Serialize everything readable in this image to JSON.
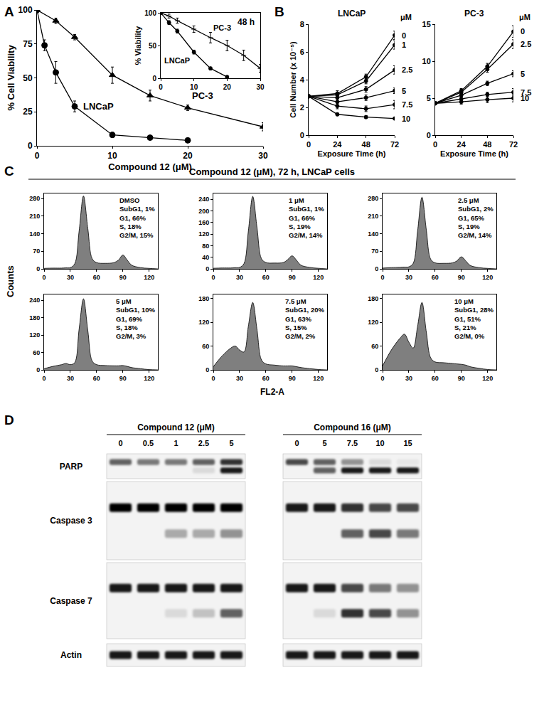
{
  "panel_labels": [
    "A",
    "B",
    "C",
    "D"
  ],
  "chart_data": [
    {
      "type": "line",
      "x_label": "Compound 12 (μM)",
      "y_label": "% Cell Viability",
      "xlim": [
        0,
        30
      ],
      "ylim": [
        0,
        100
      ],
      "xticks": [
        0,
        10,
        20,
        30
      ],
      "yticks": [
        0,
        25,
        50,
        75,
        100
      ],
      "series": [
        {
          "name": "LNCaP",
          "color": "#000000",
          "marker": "circle",
          "x": [
            0,
            1,
            2.5,
            5,
            10,
            15,
            20
          ],
          "values": [
            100,
            74,
            54,
            29,
            8,
            6,
            4
          ],
          "error": [
            2,
            4,
            8,
            4,
            2,
            1,
            1
          ]
        },
        {
          "name": "PC-3",
          "color": "#000000",
          "marker": "triangle-up",
          "x": [
            0,
            2.5,
            5,
            10,
            15,
            20,
            30
          ],
          "values": [
            100,
            92,
            80,
            52,
            37,
            28,
            14
          ],
          "error": [
            2,
            2,
            2,
            6,
            4,
            2,
            3
          ]
        }
      ]
    },
    {
      "type": "line",
      "y_label": "% Viability",
      "annotations": [
        "48 h"
      ],
      "xlim": [
        0,
        30
      ],
      "ylim": [
        0,
        100
      ],
      "xticks": [
        0,
        10,
        20,
        30
      ],
      "yticks": [
        0,
        50,
        100
      ],
      "series": [
        {
          "name": "LNCaP",
          "color": "#000000",
          "marker": "circle",
          "x": [
            0,
            2.5,
            5,
            10,
            15,
            20
          ],
          "values": [
            100,
            85,
            72,
            40,
            15,
            2
          ],
          "error": [
            2,
            3,
            3,
            3,
            2,
            1
          ]
        },
        {
          "name": "PC-3",
          "color": "#000000",
          "marker": "line-ew",
          "x": [
            0,
            2.5,
            5,
            10,
            15,
            20,
            25,
            30
          ],
          "values": [
            100,
            95,
            88,
            75,
            62,
            50,
            35,
            15
          ],
          "error": [
            2,
            3,
            4,
            5,
            8,
            8,
            8,
            6
          ]
        }
      ]
    },
    {
      "type": "line",
      "title": "LNCaP",
      "x_label": "Exposure Time (h)",
      "y_label": "Cell Number (x 10⁻⁵)",
      "annotations": [
        "μM"
      ],
      "xlim": [
        0,
        72
      ],
      "ylim": [
        0,
        8
      ],
      "xticks": [
        0,
        24,
        48,
        72
      ],
      "yticks": [
        0,
        2,
        4,
        6,
        8
      ],
      "x": [
        0,
        24,
        48,
        72
      ],
      "series": [
        {
          "name": "0",
          "color": "#000000",
          "marker": "circle",
          "values": [
            2.8,
            3.0,
            4.2,
            7.2
          ],
          "error": [
            0.1,
            0.2,
            0.2,
            0.3
          ]
        },
        {
          "name": "1",
          "color": "#000000",
          "marker": "circle",
          "values": [
            2.8,
            2.9,
            3.9,
            6.5
          ],
          "error": [
            0.1,
            0.2,
            0.2,
            0.3
          ]
        },
        {
          "name": "2.5",
          "color": "#000000",
          "marker": "circle",
          "values": [
            2.8,
            2.7,
            3.3,
            4.7
          ],
          "error": [
            0.1,
            0.2,
            0.2,
            0.3
          ]
        },
        {
          "name": "5",
          "color": "#000000",
          "marker": "circle",
          "values": [
            2.8,
            2.4,
            2.7,
            3.2
          ],
          "error": [
            0.1,
            0.2,
            0.2,
            0.2
          ]
        },
        {
          "name": "7.5",
          "color": "#000000",
          "marker": "circle",
          "values": [
            2.8,
            2.1,
            1.9,
            2.2
          ],
          "error": [
            0.1,
            0.2,
            0.2,
            0.3
          ]
        },
        {
          "name": "10",
          "color": "#000000",
          "marker": "circle",
          "values": [
            2.8,
            1.5,
            1.3,
            1.2
          ],
          "error": [
            0.1,
            0.1,
            0.1,
            0.1
          ]
        }
      ]
    },
    {
      "type": "line",
      "title": "PC-3",
      "x_label": "Exposure Time (h)",
      "annotations": [
        "μM"
      ],
      "xlim": [
        0,
        72
      ],
      "ylim": [
        0,
        15
      ],
      "xticks": [
        0,
        24,
        48,
        72
      ],
      "yticks": [
        0,
        5,
        10,
        15
      ],
      "x": [
        0,
        24,
        48,
        72
      ],
      "series": [
        {
          "name": "0",
          "color": "#000000",
          "marker": "circle",
          "values": [
            4.3,
            6.0,
            9.3,
            14.0
          ],
          "error": [
            0.2,
            0.3,
            0.4,
            0.8
          ]
        },
        {
          "name": "2.5",
          "color": "#000000",
          "marker": "circle",
          "values": [
            4.3,
            5.8,
            8.9,
            12.3
          ],
          "error": [
            0.2,
            0.3,
            0.4,
            0.6
          ]
        },
        {
          "name": "5",
          "color": "#000000",
          "marker": "circle",
          "values": [
            4.3,
            5.4,
            7.0,
            8.3
          ],
          "error": [
            0.2,
            0.3,
            0.3,
            0.4
          ]
        },
        {
          "name": "7.5",
          "color": "#000000",
          "marker": "circle",
          "values": [
            4.3,
            4.9,
            5.5,
            5.8
          ],
          "error": [
            0.2,
            0.3,
            0.3,
            0.5
          ]
        },
        {
          "name": "10",
          "color": "#000000",
          "marker": "circle",
          "values": [
            4.3,
            4.5,
            4.8,
            5.0
          ],
          "error": [
            0.2,
            0.3,
            0.4,
            0.5
          ]
        }
      ]
    },
    {
      "type": "area",
      "title": "DMSO",
      "annotations": [
        "SubG1, 1%",
        "G1, 66%",
        "S, 18%",
        "G2/M, 15%"
      ],
      "xlim": [
        0,
        130
      ],
      "ylim": [
        0,
        300
      ],
      "xticks": [
        0,
        30,
        60,
        90,
        120
      ],
      "yticks": [
        0,
        70,
        140,
        210,
        280
      ],
      "x": [
        0,
        10,
        20,
        25,
        30,
        35,
        40,
        45,
        50,
        55,
        60,
        70,
        80,
        85,
        90,
        95,
        100,
        110,
        120,
        130
      ],
      "series": [
        {
          "color": "#7f7f7f",
          "values": [
            2,
            3,
            3,
            4,
            5,
            20,
            150,
            290,
            160,
            40,
            25,
            22,
            25,
            35,
            55,
            35,
            15,
            5,
            2,
            0
          ]
        }
      ]
    },
    {
      "type": "area",
      "title": "1 μM",
      "annotations": [
        "SubG1, 1%",
        "G1, 66%",
        "S, 19%",
        "G2/M, 14%"
      ],
      "xlim": [
        0,
        130
      ],
      "ylim": [
        0,
        260
      ],
      "xticks": [
        0,
        30,
        60,
        90,
        120
      ],
      "yticks": [
        0,
        40,
        80,
        120,
        160,
        200,
        240
      ],
      "x": [
        0,
        10,
        20,
        25,
        30,
        35,
        40,
        45,
        50,
        55,
        60,
        70,
        80,
        85,
        90,
        95,
        100,
        110,
        120,
        130
      ],
      "series": [
        {
          "color": "#7f7f7f",
          "values": [
            2,
            3,
            3,
            4,
            5,
            18,
            130,
            250,
            140,
            35,
            22,
            20,
            22,
            32,
            45,
            30,
            13,
            5,
            2,
            0
          ]
        }
      ]
    },
    {
      "type": "area",
      "title": "2.5 μM",
      "annotations": [
        "SubG1, 2%",
        "G1, 65%",
        "S, 19%",
        "G2/M, 14%"
      ],
      "xlim": [
        0,
        130
      ],
      "ylim": [
        0,
        300
      ],
      "xticks": [
        0,
        30,
        60,
        90,
        120
      ],
      "yticks": [
        0,
        70,
        140,
        210,
        280
      ],
      "x": [
        0,
        10,
        20,
        25,
        30,
        35,
        40,
        45,
        50,
        55,
        60,
        70,
        80,
        85,
        90,
        95,
        100,
        110,
        120,
        130
      ],
      "series": [
        {
          "color": "#7f7f7f",
          "values": [
            3,
            5,
            6,
            7,
            8,
            22,
            150,
            285,
            155,
            38,
            24,
            22,
            24,
            32,
            48,
            32,
            14,
            5,
            2,
            0
          ]
        }
      ]
    },
    {
      "type": "area",
      "title": "5 μM",
      "annotations": [
        "SubG1, 10%",
        "G1, 69%",
        "S, 18%",
        "G2/M, 3%"
      ],
      "xlim": [
        0,
        130
      ],
      "ylim": [
        0,
        260
      ],
      "xticks": [
        0,
        30,
        60,
        90,
        120
      ],
      "yticks": [
        0,
        60,
        120,
        180,
        240
      ],
      "x": [
        0,
        10,
        20,
        25,
        30,
        35,
        40,
        45,
        50,
        55,
        60,
        70,
        80,
        85,
        90,
        95,
        100,
        110,
        120,
        130
      ],
      "series": [
        {
          "color": "#7f7f7f",
          "values": [
            4,
            12,
            18,
            22,
            18,
            25,
            140,
            245,
            135,
            30,
            18,
            15,
            14,
            14,
            15,
            12,
            8,
            4,
            1,
            0
          ]
        }
      ]
    },
    {
      "type": "area",
      "title": "7.5 μM",
      "annotations": [
        "SubG1, 20%",
        "G1, 63%",
        "S, 15%",
        "G2/M, 2%"
      ],
      "xlim": [
        0,
        130
      ],
      "ylim": [
        0,
        190
      ],
      "xticks": [
        0,
        30,
        60,
        90,
        120
      ],
      "yticks": [
        0,
        60,
        120,
        180
      ],
      "x": [
        0,
        10,
        20,
        25,
        30,
        35,
        40,
        45,
        50,
        55,
        60,
        70,
        80,
        85,
        90,
        95,
        100,
        110,
        120,
        130
      ],
      "series": [
        {
          "color": "#7f7f7f",
          "values": [
            8,
            35,
            55,
            60,
            50,
            45,
            110,
            170,
            100,
            25,
            15,
            12,
            10,
            10,
            10,
            8,
            6,
            3,
            1,
            0
          ]
        }
      ]
    },
    {
      "type": "area",
      "title": "10 μM",
      "annotations": [
        "SubG1, 28%",
        "G1, 51%",
        "S, 21%",
        "G2/M, 0%"
      ],
      "xlim": [
        0,
        130
      ],
      "ylim": [
        0,
        190
      ],
      "xticks": [
        0,
        30,
        60,
        90,
        120
      ],
      "yticks": [
        0,
        60,
        120,
        180
      ],
      "x": [
        0,
        10,
        20,
        25,
        30,
        35,
        40,
        45,
        50,
        55,
        60,
        70,
        80,
        85,
        90,
        95,
        100,
        110,
        120,
        130
      ],
      "series": [
        {
          "color": "#7f7f7f",
          "values": [
            10,
            50,
            80,
            90,
            70,
            55,
            110,
            170,
            95,
            30,
            20,
            18,
            16,
            15,
            14,
            12,
            8,
            4,
            1,
            0
          ]
        }
      ]
    }
  ],
  "section_C": {
    "title": "Compound 12 (μM), 72 h, LNCaP cells",
    "x_label": "FL2-A",
    "y_label": "Counts"
  },
  "blot": {
    "groups": [
      {
        "title": "Compound 12 (μM)",
        "lanes": [
          "0",
          "0.5",
          "1",
          "2.5",
          "5"
        ]
      },
      {
        "title": "Compound 16 (μM)",
        "lanes": [
          "0",
          "5",
          "7.5",
          "10",
          "15"
        ]
      }
    ],
    "rows": [
      {
        "label": "PARP",
        "bands": [
          [
            [
              0.6,
              0.5,
              0.5,
              0.6,
              0.8
            ],
            [
              0.7,
              0.6,
              0.4,
              0.1,
              0.05
            ]
          ],
          [
            [
              0,
              0,
              0,
              0.1,
              0.9
            ],
            [
              0,
              0.6,
              0.9,
              0.9,
              0.9
            ]
          ]
        ]
      },
      {
        "label": "Caspase 3",
        "bands": [
          [
            [
              1,
              1,
              1,
              1,
              1
            ],
            [
              0.9,
              0.9,
              0.8,
              0.7,
              0.7
            ]
          ],
          [
            [
              0,
              0,
              0.3,
              0.3,
              0.4
            ],
            [
              0,
              0,
              0.6,
              0.7,
              0.5
            ]
          ]
        ]
      },
      {
        "label": "Caspase 7",
        "bands": [
          [
            [
              0.9,
              0.9,
              0.9,
              0.9,
              0.9
            ],
            [
              0.9,
              0.9,
              0.7,
              0.5,
              0.4
            ]
          ],
          [
            [
              0,
              0,
              0.1,
              0.2,
              0.6
            ],
            [
              0,
              0.1,
              0.8,
              0.7,
              0.4
            ]
          ]
        ]
      },
      {
        "label": "Actin",
        "bands": [
          [
            [
              0.9,
              0.9,
              0.9,
              0.9,
              0.9
            ],
            [
              0.9,
              0.9,
              0.9,
              0.9,
              0.9
            ]
          ]
        ]
      }
    ]
  }
}
